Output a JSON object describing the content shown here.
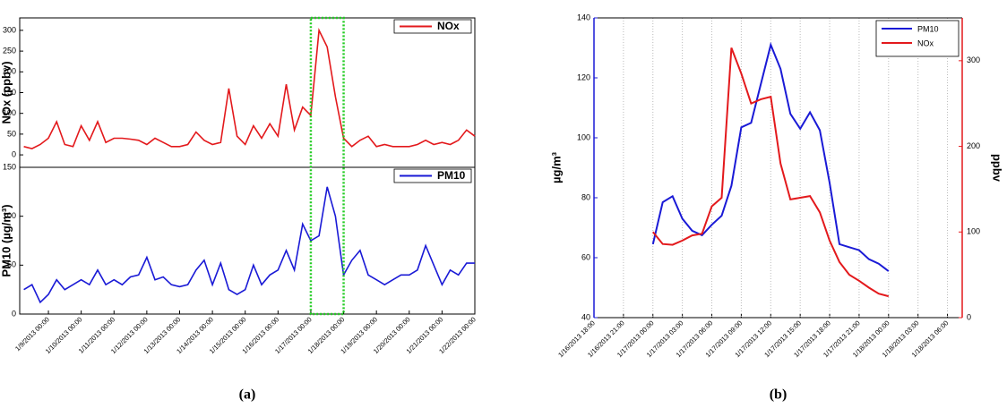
{
  "chart_data": [
    {
      "type": "stacked_line",
      "panel_label": "(a)",
      "x": [
        "1/8/2013 06:00",
        "1/8/2013 12:00",
        "1/8/2013 18:00",
        "1/9/2013 00:00",
        "1/9/2013 06:00",
        "1/9/2013 12:00",
        "1/9/2013 18:00",
        "1/10/2013 00:00",
        "1/10/2013 06:00",
        "1/10/2013 12:00",
        "1/10/2013 18:00",
        "1/11/2013 00:00",
        "1/11/2013 06:00",
        "1/11/2013 12:00",
        "1/11/2013 18:00",
        "1/12/2013 00:00",
        "1/12/2013 06:00",
        "1/12/2013 12:00",
        "1/12/2013 18:00",
        "1/13/2013 00:00",
        "1/13/2013 06:00",
        "1/13/2013 12:00",
        "1/13/2013 18:00",
        "1/14/2013 00:00",
        "1/14/2013 06:00",
        "1/14/2013 12:00",
        "1/14/2013 18:00",
        "1/15/2013 00:00",
        "1/15/2013 06:00",
        "1/15/2013 12:00",
        "1/15/2013 18:00",
        "1/16/2013 00:00",
        "1/16/2013 06:00",
        "1/16/2013 12:00",
        "1/16/2013 18:00",
        "1/17/2013 00:00",
        "1/17/2013 06:00",
        "1/17/2013 12:00",
        "1/17/2013 18:00",
        "1/18/2013 00:00",
        "1/18/2013 06:00",
        "1/18/2013 12:00",
        "1/18/2013 18:00",
        "1/19/2013 00:00",
        "1/19/2013 06:00",
        "1/19/2013 12:00",
        "1/19/2013 18:00",
        "1/20/2013 00:00",
        "1/20/2013 06:00",
        "1/20/2013 12:00",
        "1/20/2013 18:00",
        "1/21/2013 00:00",
        "1/21/2013 06:00",
        "1/21/2013 12:00",
        "1/21/2013 18:00",
        "1/22/2013 00:00"
      ],
      "xlim": [
        "1/8/2013 03:00",
        "1/22/2013 00:00"
      ],
      "xticks": [
        "1/9/2013 00:00",
        "1/10/2013 00:00",
        "1/11/2013 00:00",
        "1/12/2013 00:00",
        "1/13/2013 00:00",
        "1/14/2013 00:00",
        "1/15/2013 00:00",
        "1/16/2013 00:00",
        "1/17/2013 00:00",
        "1/18/2013 00:00",
        "1/19/2013 00:00",
        "1/20/2013 00:00",
        "1/21/2013 00:00",
        "1/22/2013 00:00"
      ],
      "highlight": {
        "from": "1/17/2013 00:00",
        "to": "1/18/2013 00:00",
        "color": "#22cc22"
      },
      "subplots": [
        {
          "ylabel": "NOx (ppbv)",
          "ylim": [
            -30,
            330
          ],
          "yticks": [
            0,
            50,
            100,
            150,
            200,
            250,
            300
          ],
          "series": [
            {
              "name": "NOx",
              "color": "#e3191c",
              "values": [
                20,
                15,
                25,
                40,
                80,
                25,
                20,
                70,
                35,
                80,
                30,
                40,
                40,
                38,
                35,
                25,
                40,
                30,
                20,
                20,
                25,
                55,
                35,
                25,
                30,
                160,
                45,
                25,
                70,
                40,
                75,
                45,
                170,
                60,
                115,
                95,
                300,
                260,
                140,
                40,
                20,
                35,
                45,
                20,
                25,
                20,
                20,
                20,
                25,
                35,
                25,
                30,
                25,
                35,
                60,
                45
              ]
            }
          ]
        },
        {
          "ylabel": "PM10 (µg/m³)",
          "ylim": [
            0,
            150
          ],
          "yticks": [
            0,
            50,
            100,
            150
          ],
          "series": [
            {
              "name": "PM10",
              "color": "#1a1ad6",
              "values": [
                25,
                30,
                12,
                20,
                35,
                25,
                30,
                35,
                30,
                45,
                30,
                35,
                30,
                38,
                40,
                58,
                35,
                38,
                30,
                28,
                30,
                45,
                55,
                30,
                52,
                25,
                20,
                25,
                50,
                30,
                40,
                45,
                65,
                45,
                92,
                75,
                80,
                130,
                100,
                40,
                55,
                65,
                40,
                35,
                30,
                35,
                40,
                40,
                45,
                70,
                50,
                30,
                45,
                40,
                52,
                52
              ]
            }
          ]
        }
      ]
    },
    {
      "type": "dual_axis_line",
      "panel_label": "(b)",
      "x": [
        "1/17/2013 00:00",
        "1/17/2013 01:00",
        "1/17/2013 02:00",
        "1/17/2013 03:00",
        "1/17/2013 04:00",
        "1/17/2013 05:00",
        "1/17/2013 06:00",
        "1/17/2013 07:00",
        "1/17/2013 08:00",
        "1/17/2013 09:00",
        "1/17/2013 10:00",
        "1/17/2013 11:00",
        "1/17/2013 12:00",
        "1/17/2013 13:00",
        "1/17/2013 14:00",
        "1/17/2013 15:00",
        "1/17/2013 16:00",
        "1/17/2013 17:00",
        "1/17/2013 18:00",
        "1/17/2013 19:00",
        "1/17/2013 20:00",
        "1/17/2013 21:00",
        "1/17/2013 22:00",
        "1/17/2013 23:00",
        "1/18/2013 00:00"
      ],
      "xlim": [
        "1/16/2013 18:00",
        "1/18/2013 07:30"
      ],
      "xticks": [
        "1/16/2013 18:00",
        "1/16/2013 21:00",
        "1/17/2013 00:00",
        "1/17/2013 03:00",
        "1/17/2013 06:00",
        "1/17/2013 09:00",
        "1/17/2013 12:00",
        "1/17/2013 15:00",
        "1/17/2013 18:00",
        "1/17/2013 21:00",
        "1/18/2013 00:00",
        "1/18/2013 03:00",
        "1/18/2013 06:00"
      ],
      "ylabel": "µg/m³",
      "y2label": "ppbv",
      "ylim": [
        40,
        140
      ],
      "yticks": [
        40,
        60,
        80,
        100,
        120,
        140
      ],
      "y2lim": [
        0,
        350
      ],
      "y2ticks": [
        0,
        100,
        200,
        300
      ],
      "grid": true,
      "legend": "upper right",
      "series": [
        {
          "name": "PM10",
          "color": "#1a1ad6",
          "values": [
            64.5,
            78.5,
            80.5,
            73,
            69,
            67.5,
            71,
            74,
            84,
            103.5,
            105,
            118,
            131,
            123,
            108,
            103,
            108.5,
            102.5,
            85,
            64.5,
            63.5,
            62.5,
            59.5,
            58,
            55.5
          ]
        },
        {
          "name": "NOx",
          "color": "#e3191c",
          "axis": "y2",
          "values": [
            100,
            86,
            85,
            90,
            96,
            98,
            130,
            140,
            315,
            285,
            250,
            255,
            258,
            180,
            138,
            140,
            142,
            123,
            90,
            65,
            50,
            43,
            35,
            28,
            25
          ]
        }
      ]
    }
  ]
}
